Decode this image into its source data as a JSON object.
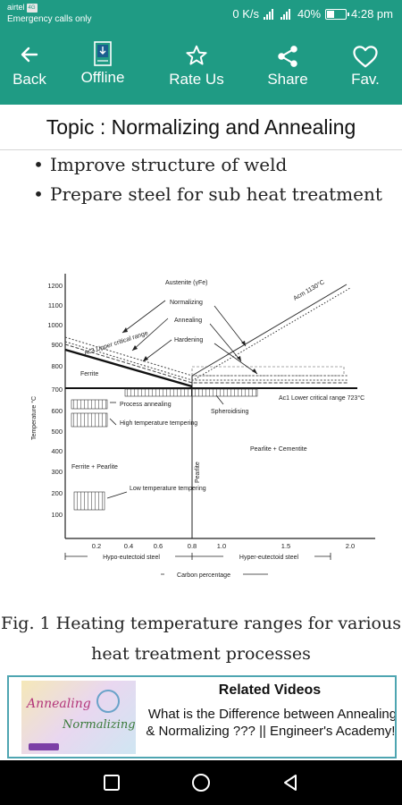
{
  "status_bar": {
    "carrier": "airtel",
    "carrier_badge": "4G",
    "emergency": "Emergency calls only",
    "speed": "0 K/s",
    "network": "4G",
    "battery": "40%",
    "battery_level": 0.4,
    "time": "4:28 pm"
  },
  "toolbar": {
    "back_label": "Back",
    "offline_label": "Offline",
    "rate_label": "Rate Us",
    "share_label": "Share",
    "fav_label": "Fav."
  },
  "topic": "Topic : Normalizing and Annealing",
  "bullets": [
    "Improve structure of weld",
    "Prepare steel for sub heat treatment"
  ],
  "diagram": {
    "y_axis_label": "Temperature °C",
    "y_ticks": [
      "1200",
      "1100",
      "1000",
      "900",
      "800",
      "700",
      "600",
      "500",
      "400",
      "300",
      "200",
      "100"
    ],
    "x_ticks": [
      "0.2",
      "0.4",
      "0.6",
      "0.8",
      "1.0",
      "1.5",
      "2.0"
    ],
    "x_axis_label": "Carbon percentage",
    "hypo_label": "Hypo-eutectoid steel",
    "hyper_label": "Hyper-eutectoid steel",
    "labels": {
      "austenite": "Austenite (γFe)",
      "normalizing": "Normalizing",
      "annealing": "Annealing",
      "hardening": "Hardening",
      "acm": "Acm 1130°C",
      "ac3_upper": "Ac3 Upper critical range",
      "ferrite": "Ferrite",
      "ac1_lower": "Ac1 Lower critical range 723°C",
      "process_annealing": "Process annealing",
      "spheroidising": "Spheroidising",
      "high_temp_tempering": "High temperature tempering",
      "pearlite_cementite": "Pearlite + Cementite",
      "ferrite_pearlite": "Ferrite + Pearlite",
      "pearlite": "Pearlite",
      "low_temp_tempering": "Low temperature tempering"
    }
  },
  "caption": "Fig. 1 Heating temperature ranges for various heat treatment processes",
  "related": {
    "title": "Related Videos",
    "description": "What is the Difference between Annealing & Normalizing ??? || Engineer's Academy!!",
    "thumb_text_1": "Annealing",
    "thumb_text_2": "Normalizing"
  }
}
